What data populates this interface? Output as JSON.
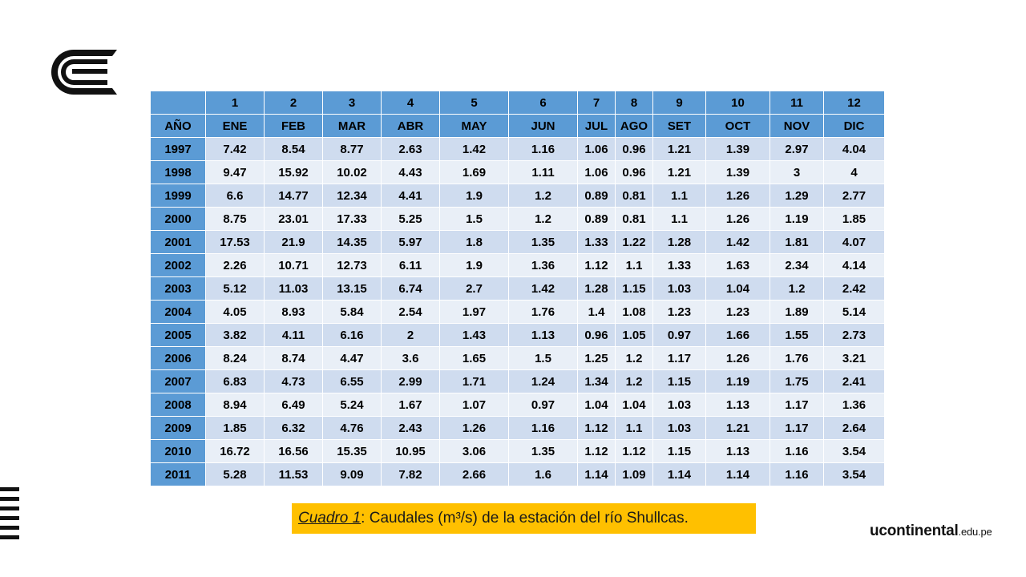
{
  "table": {
    "header_numbers": [
      "",
      "1",
      "2",
      "3",
      "4",
      "5",
      "6",
      "7",
      "8",
      "9",
      "10",
      "11",
      "12"
    ],
    "header_months": [
      "AÑO",
      "ENE",
      "FEB",
      "MAR",
      "ABR",
      "MAY",
      "JUN",
      "JUL",
      "AGO",
      "SET",
      "OCT",
      "NOV",
      "DIC"
    ],
    "rows": [
      {
        "year": "1997",
        "values": [
          "7.42",
          "8.54",
          "8.77",
          "2.63",
          "1.42",
          "1.16",
          "1.06",
          "0.96",
          "1.21",
          "1.39",
          "2.97",
          "4.04"
        ]
      },
      {
        "year": "1998",
        "values": [
          "9.47",
          "15.92",
          "10.02",
          "4.43",
          "1.69",
          "1.11",
          "1.06",
          "0.96",
          "1.21",
          "1.39",
          "3",
          "4"
        ]
      },
      {
        "year": "1999",
        "values": [
          "6.6",
          "14.77",
          "12.34",
          "4.41",
          "1.9",
          "1.2",
          "0.89",
          "0.81",
          "1.1",
          "1.26",
          "1.29",
          "2.77"
        ]
      },
      {
        "year": "2000",
        "values": [
          "8.75",
          "23.01",
          "17.33",
          "5.25",
          "1.5",
          "1.2",
          "0.89",
          "0.81",
          "1.1",
          "1.26",
          "1.19",
          "1.85"
        ]
      },
      {
        "year": "2001",
        "values": [
          "17.53",
          "21.9",
          "14.35",
          "5.97",
          "1.8",
          "1.35",
          "1.33",
          "1.22",
          "1.28",
          "1.42",
          "1.81",
          "4.07"
        ]
      },
      {
        "year": "2002",
        "values": [
          "2.26",
          "10.71",
          "12.73",
          "6.11",
          "1.9",
          "1.36",
          "1.12",
          "1.1",
          "1.33",
          "1.63",
          "2.34",
          "4.14"
        ]
      },
      {
        "year": "2003",
        "values": [
          "5.12",
          "11.03",
          "13.15",
          "6.74",
          "2.7",
          "1.42",
          "1.28",
          "1.15",
          "1.03",
          "1.04",
          "1.2",
          "2.42"
        ]
      },
      {
        "year": "2004",
        "values": [
          "4.05",
          "8.93",
          "5.84",
          "2.54",
          "1.97",
          "1.76",
          "1.4",
          "1.08",
          "1.23",
          "1.23",
          "1.89",
          "5.14"
        ]
      },
      {
        "year": "2005",
        "values": [
          "3.82",
          "4.11",
          "6.16",
          "2",
          "1.43",
          "1.13",
          "0.96",
          "1.05",
          "0.97",
          "1.66",
          "1.55",
          "2.73"
        ]
      },
      {
        "year": "2006",
        "values": [
          "8.24",
          "8.74",
          "4.47",
          "3.6",
          "1.65",
          "1.5",
          "1.25",
          "1.2",
          "1.17",
          "1.26",
          "1.76",
          "3.21"
        ]
      },
      {
        "year": "2007",
        "values": [
          "6.83",
          "4.73",
          "6.55",
          "2.99",
          "1.71",
          "1.24",
          "1.34",
          "1.2",
          "1.15",
          "1.19",
          "1.75",
          "2.41"
        ]
      },
      {
        "year": "2008",
        "values": [
          "8.94",
          "6.49",
          "5.24",
          "1.67",
          "1.07",
          "0.97",
          "1.04",
          "1.04",
          "1.03",
          "1.13",
          "1.17",
          "1.36"
        ]
      },
      {
        "year": "2009",
        "values": [
          "1.85",
          "6.32",
          "4.76",
          "2.43",
          "1.26",
          "1.16",
          "1.12",
          "1.1",
          "1.03",
          "1.21",
          "1.17",
          "2.64"
        ]
      },
      {
        "year": "2010",
        "values": [
          "16.72",
          "16.56",
          "15.35",
          "10.95",
          "3.06",
          "1.35",
          "1.12",
          "1.12",
          "1.15",
          "1.13",
          "1.16",
          "3.54"
        ]
      },
      {
        "year": "2011",
        "values": [
          "5.28",
          "11.53",
          "9.09",
          "7.82",
          "2.66",
          "1.6",
          "1.14",
          "1.09",
          "1.14",
          "1.14",
          "1.16",
          "3.54"
        ]
      }
    ]
  },
  "caption": {
    "label": "Cuadro 1",
    "text": ": Caudales (m³/s) de la estación del río Shullcas."
  },
  "brand": {
    "name": "ucontinental",
    "suffix": ".edu.pe"
  },
  "colors": {
    "header_blue": "#5b9bd5",
    "row_dark": "#cfdcef",
    "row_light": "#e9eff7",
    "caption_bg": "#ffc000"
  },
  "icons": {
    "top_logo": "continental-logo-icon",
    "side_logo": "stripes-logo-icon"
  }
}
